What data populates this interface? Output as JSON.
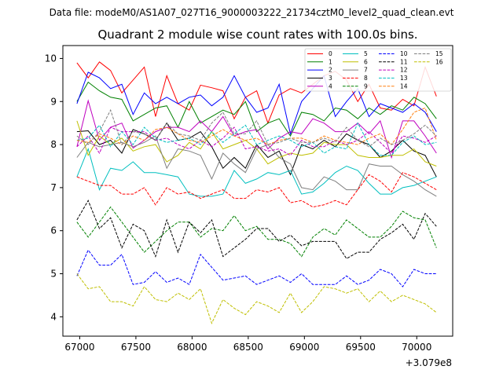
{
  "header": {
    "suptitle": "Data file: modeM0/AS1A07_027T16_9000003222_21734cztM0_level2_quad_clean.evt"
  },
  "chart_data": {
    "type": "line",
    "title": "Quadrant 2 module wise count rates with 100.0s bins.",
    "xlabel": "",
    "ylabel": "",
    "x_offset_label": "+3.079e8",
    "xlim": [
      66850,
      70320
    ],
    "ylim": [
      3.55,
      10.3
    ],
    "xticks": [
      67000,
      67500,
      68000,
      68500,
      69000,
      69500,
      70000
    ],
    "xtick_labels": [
      "67000",
      "67500",
      "68000",
      "68500",
      "69000",
      "69500",
      "70000"
    ],
    "yticks": [
      4,
      5,
      6,
      7,
      8,
      9,
      10
    ],
    "ytick_labels": [
      "4",
      "5",
      "6",
      "7",
      "8",
      "9",
      "10"
    ],
    "grid": false,
    "legend_location": "top-right",
    "legend_columns": 4,
    "x": [
      66975,
      67075,
      67175,
      67275,
      67375,
      67475,
      67575,
      67675,
      67775,
      67875,
      67975,
      68075,
      68175,
      68275,
      68375,
      68475,
      68575,
      68675,
      68775,
      68875,
      68975,
      69075,
      69175,
      69275,
      69375,
      69475,
      69575,
      69675,
      69775,
      69875,
      69975,
      70075,
      70175
    ],
    "series": [
      {
        "name": "0",
        "color": "#ff0000",
        "style": "solid",
        "values": [
          9.9,
          9.55,
          9.92,
          9.72,
          9.2,
          9.5,
          9.8,
          8.65,
          9.6,
          8.95,
          8.8,
          9.38,
          9.32,
          9.25,
          8.6,
          9.1,
          9.25,
          8.5,
          9.15,
          9.3,
          9.2,
          9.4,
          9.6,
          9.7,
          9.5,
          9.0,
          9.4,
          8.85,
          8.8,
          9.05,
          8.9,
          9.8,
          9.12
        ]
      },
      {
        "name": "1",
        "color": "#008000",
        "style": "solid",
        "values": [
          9.0,
          9.45,
          9.25,
          9.1,
          9.05,
          8.55,
          8.7,
          8.85,
          8.9,
          8.4,
          9.0,
          8.5,
          8.65,
          8.8,
          8.7,
          9.0,
          8.3,
          8.5,
          8.6,
          8.2,
          8.75,
          8.7,
          8.55,
          8.85,
          8.8,
          8.6,
          8.85,
          8.7,
          8.9,
          8.8,
          9.1,
          8.95,
          8.6
        ]
      },
      {
        "name": "2",
        "color": "#0000ff",
        "style": "solid",
        "values": [
          8.95,
          9.68,
          9.55,
          9.3,
          9.4,
          8.7,
          9.2,
          8.95,
          9.1,
          8.95,
          9.1,
          9.15,
          8.9,
          9.1,
          9.6,
          9.1,
          8.75,
          8.85,
          9.4,
          8.25,
          9.0,
          9.3,
          9.6,
          8.65,
          9.0,
          9.3,
          8.65,
          8.95,
          8.85,
          8.75,
          8.95,
          8.75,
          8.3
        ]
      },
      {
        "name": "3",
        "color": "#000000",
        "style": "solid",
        "values": [
          8.3,
          8.32,
          8.0,
          8.1,
          7.8,
          8.35,
          8.25,
          8.1,
          8.5,
          8.1,
          8.15,
          8.3,
          7.95,
          7.45,
          7.7,
          7.45,
          8.0,
          7.7,
          7.85,
          7.3,
          8.0,
          7.9,
          8.1,
          7.95,
          8.25,
          8.1,
          8.0,
          7.7,
          7.85,
          8.1,
          7.85,
          7.75,
          7.25
        ]
      },
      {
        "name": "4",
        "color": "#bf00bf",
        "style": "solid",
        "values": [
          7.95,
          9.02,
          8.1,
          8.4,
          8.5,
          7.92,
          8.1,
          8.3,
          8.4,
          8.4,
          8.3,
          8.55,
          8.3,
          8.65,
          8.2,
          8.3,
          8.35,
          7.9,
          8.15,
          8.3,
          8.25,
          8.6,
          8.5,
          8.3,
          8.3,
          8.5,
          8.25,
          8.55,
          7.7,
          8.55,
          8.55,
          8.2,
          7.8
        ]
      },
      {
        "name": "5",
        "color": "#00bfbf",
        "style": "solid",
        "values": [
          7.25,
          7.9,
          6.95,
          7.45,
          7.4,
          7.6,
          7.35,
          7.35,
          7.3,
          7.25,
          6.85,
          6.8,
          6.8,
          6.85,
          7.4,
          7.1,
          7.2,
          7.35,
          7.3,
          7.4,
          6.85,
          6.9,
          7.1,
          7.35,
          7.5,
          7.4,
          7.1,
          6.85,
          6.85,
          7.0,
          7.05,
          7.15,
          7.25
        ]
      },
      {
        "name": "6",
        "color": "#bfbf00",
        "style": "solid",
        "values": [
          8.55,
          7.75,
          8.2,
          8.0,
          8.15,
          7.85,
          7.95,
          8.0,
          7.6,
          7.75,
          8.05,
          7.9,
          8.3,
          7.9,
          8.0,
          8.1,
          7.9,
          7.55,
          7.7,
          7.8,
          7.75,
          7.8,
          8.05,
          8.0,
          8.0,
          7.75,
          7.7,
          7.7,
          7.75,
          7.75,
          7.9,
          7.6,
          7.5
        ]
      },
      {
        "name": "7",
        "color": "#7f7f7f",
        "style": "solid",
        "values": [
          7.7,
          8.05,
          7.95,
          8.0,
          8.05,
          7.95,
          8.05,
          8.2,
          7.45,
          7.9,
          7.85,
          7.75,
          7.2,
          7.8,
          7.55,
          7.35,
          7.9,
          8.0,
          7.7,
          7.55,
          7.0,
          6.95,
          7.25,
          7.15,
          6.95,
          6.95,
          7.55,
          7.5,
          7.5,
          7.3,
          7.15,
          6.95,
          6.8
        ]
      },
      {
        "name": "8",
        "color": "#ff0000",
        "style": "dashed",
        "values": [
          7.25,
          7.15,
          7.05,
          7.05,
          6.85,
          6.85,
          7.0,
          6.6,
          7.0,
          6.85,
          6.9,
          6.75,
          6.85,
          6.95,
          6.75,
          6.75,
          6.95,
          6.9,
          7.0,
          6.65,
          6.7,
          6.55,
          6.6,
          6.7,
          6.6,
          6.95,
          7.3,
          7.15,
          6.9,
          7.35,
          7.25,
          7.1,
          6.95
        ]
      },
      {
        "name": "9",
        "color": "#008000",
        "style": "dashed",
        "values": [
          6.2,
          5.85,
          6.2,
          6.55,
          6.2,
          5.85,
          5.5,
          5.75,
          6.0,
          6.2,
          6.2,
          5.85,
          6.05,
          6.0,
          6.35,
          6.0,
          6.1,
          5.8,
          5.8,
          5.7,
          5.4,
          5.85,
          6.05,
          5.9,
          6.25,
          6.05,
          5.85,
          5.85,
          6.1,
          6.45,
          6.3,
          6.25,
          5.6
        ]
      },
      {
        "name": "10",
        "color": "#0000ff",
        "style": "dashed",
        "values": [
          4.95,
          5.55,
          5.2,
          5.2,
          5.45,
          4.75,
          4.8,
          5.05,
          4.8,
          4.9,
          4.75,
          5.45,
          5.15,
          4.85,
          4.9,
          4.95,
          4.75,
          4.85,
          4.95,
          4.8,
          5.0,
          4.75,
          4.75,
          4.75,
          4.95,
          4.75,
          4.85,
          5.1,
          5.0,
          4.7,
          5.1,
          5.0,
          5.0
        ]
      },
      {
        "name": "11",
        "color": "#000000",
        "style": "dashed",
        "values": [
          6.25,
          6.7,
          6.05,
          6.3,
          5.6,
          6.15,
          6.0,
          5.4,
          6.25,
          5.5,
          6.2,
          5.95,
          6.25,
          5.4,
          5.6,
          5.8,
          6.05,
          6.05,
          5.75,
          5.9,
          5.65,
          5.75,
          5.75,
          5.75,
          5.35,
          5.5,
          5.5,
          5.8,
          5.95,
          6.15,
          5.8,
          6.4,
          6.1
        ]
      },
      {
        "name": "12",
        "color": "#bf00bf",
        "style": "dashed",
        "values": [
          7.95,
          8.2,
          7.8,
          8.4,
          8.3,
          8.3,
          8.3,
          8.1,
          8.15,
          8.0,
          7.9,
          8.1,
          7.95,
          8.15,
          8.4,
          7.9,
          7.95,
          7.85,
          7.9,
          7.75,
          8.1,
          7.95,
          7.95,
          8.1,
          8.0,
          8.1,
          8.3,
          8.05,
          7.8,
          8.2,
          8.15,
          8.05,
          8.2
        ]
      },
      {
        "name": "13",
        "color": "#00bfbf",
        "style": "dashed",
        "values": [
          8.1,
          8.15,
          8.45,
          7.95,
          8.3,
          8.0,
          8.4,
          8.15,
          8.05,
          8.1,
          8.15,
          8.0,
          8.3,
          8.05,
          8.25,
          8.45,
          8.0,
          8.1,
          8.2,
          8.1,
          7.95,
          8.05,
          7.8,
          7.95,
          7.9,
          8.5,
          8.0,
          7.75,
          7.75,
          8.05,
          8.2,
          8.0,
          8.05
        ]
      },
      {
        "name": "14",
        "color": "#ff7f0e",
        "style": "dashed",
        "values": [
          8.1,
          8.05,
          8.25,
          8.15,
          8.0,
          8.2,
          8.1,
          8.35,
          8.4,
          8.25,
          8.1,
          8.05,
          8.2,
          8.35,
          8.2,
          8.1,
          8.15,
          8.0,
          8.1,
          8.15,
          8.15,
          8.05,
          8.2,
          8.1,
          8.05,
          8.0,
          8.15,
          8.25,
          8.0,
          8.35,
          8.75,
          8.85,
          8.1
        ]
      },
      {
        "name": "15",
        "color": "#7f7f7f",
        "style": "dashed",
        "values": [
          8.2,
          8.0,
          8.3,
          8.8,
          8.0,
          8.3,
          8.25,
          8.1,
          8.5,
          8.25,
          8.2,
          8.1,
          8.5,
          8.75,
          8.25,
          8.25,
          8.55,
          8.0,
          8.05,
          8.15,
          8.05,
          8.05,
          8.15,
          8.05,
          8.4,
          8.1,
          7.95,
          8.15,
          8.0,
          8.1,
          8.25,
          8.45,
          8.2
        ]
      },
      {
        "name": "16",
        "color": "#bfbf00",
        "style": "dashed",
        "values": [
          5.0,
          4.65,
          4.7,
          4.35,
          4.35,
          4.25,
          4.7,
          4.4,
          4.35,
          4.55,
          4.4,
          4.65,
          3.85,
          4.4,
          4.2,
          4.05,
          4.35,
          4.25,
          4.1,
          4.55,
          4.1,
          4.35,
          4.7,
          4.65,
          4.55,
          4.65,
          4.35,
          4.6,
          4.35,
          4.5,
          4.4,
          4.3,
          4.1
        ]
      }
    ]
  }
}
